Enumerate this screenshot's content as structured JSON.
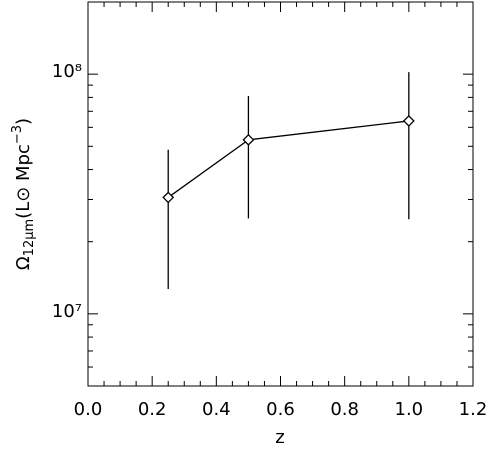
{
  "chart_data": {
    "type": "line",
    "xlabel": "z",
    "ylabel": [
      "Ω",
      "12μm",
      "(L⊙ Mpc",
      "−3",
      ")"
    ],
    "x": [
      0.25,
      0.5,
      1.0
    ],
    "series": [
      {
        "values": [
          30600000,
          53200000,
          63800000
        ],
        "lower": [
          12700000,
          25000000,
          24800000
        ],
        "upper": [
          48400000,
          81100000,
          102000000
        ],
        "color": "#000000"
      }
    ],
    "xlim": [
      0,
      1.2
    ],
    "xticks": [
      {
        "value": 0,
        "label": "0.0"
      },
      0.2,
      0.4,
      0.6,
      0.8,
      {
        "value": 1,
        "label": "1.0"
      },
      1.2
    ],
    "xminorticks": [
      0.05,
      0.1,
      0.15,
      0.25,
      0.3,
      0.35,
      0.45,
      0.5,
      0.55,
      0.65,
      0.7,
      0.75,
      0.85,
      0.9,
      0.95,
      1.05,
      1.1,
      1.15
    ],
    "ylim": [
      5000000,
      200000000
    ],
    "ylog": true,
    "yticks": [
      {
        "value": 10000000,
        "label": "10⁷"
      },
      {
        "value": 100000000,
        "label": "10⁸"
      }
    ],
    "yminorticks": [
      6000000,
      7000000,
      8000000,
      9000000,
      20000000,
      30000000,
      40000000,
      50000000,
      60000000,
      70000000,
      80000000,
      90000000
    ]
  }
}
